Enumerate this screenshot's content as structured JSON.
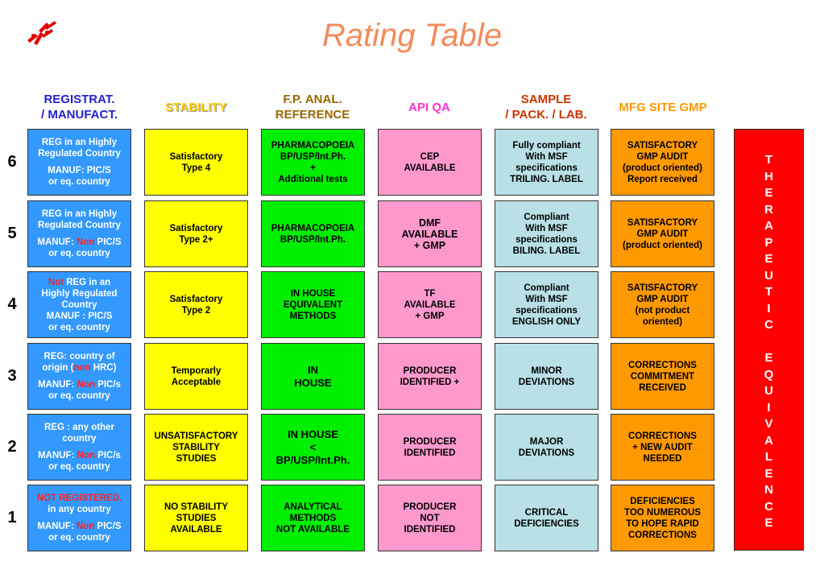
{
  "title": "Rating  Table",
  "logo_icon": "msf-logo-icon",
  "headers": [
    {
      "text": "REGISTRAT.\n/ MANUFACT.",
      "color": "#2222cc"
    },
    {
      "text": "STABILITY",
      "color": "#ffcc00"
    },
    {
      "text": "F.P. ANAL.\nREFERENCE",
      "color": "#996600"
    },
    {
      "text": "API QA",
      "color": "#ff33cc"
    },
    {
      "text": "SAMPLE\n/ PACK. / LAB.",
      "color": "#cc3300"
    },
    {
      "text": "MFG SITE GMP",
      "color": "#ff9900"
    }
  ],
  "rows": [
    {
      "num": "6",
      "cells": [
        [
          [
            {
              "t": "REG in an Highly"
            }
          ],
          [
            {
              "t": "Regulated  Country"
            }
          ],
          null,
          [
            {
              "t": "MANUF: PIC/S"
            }
          ],
          [
            {
              "t": "or eq. country"
            }
          ]
        ],
        [
          [
            {
              "t": "Satisfactory"
            }
          ],
          [
            {
              "t": "Type 4"
            }
          ]
        ],
        [
          [
            {
              "t": "PHARMACOPOEIA"
            }
          ],
          [
            {
              "t": "BP/USP/Int.Ph."
            }
          ],
          [
            {
              "t": "+"
            }
          ],
          [
            {
              "t": "Additional tests"
            }
          ]
        ],
        [
          [
            {
              "t": "CEP"
            }
          ],
          [
            {
              "t": "AVAILABLE"
            }
          ]
        ],
        [
          [
            {
              "t": "Fully compliant"
            }
          ],
          [
            {
              "t": "With MSF"
            }
          ],
          [
            {
              "t": "specifications"
            }
          ],
          [
            {
              "t": "TRILING. LABEL"
            }
          ]
        ],
        [
          [
            {
              "t": "SATISFACTORY"
            }
          ],
          [
            {
              "t": "GMP AUDIT"
            }
          ],
          [
            {
              "t": "(product oriented)"
            }
          ],
          [
            {
              "t": "Report received"
            }
          ]
        ]
      ]
    },
    {
      "num": "5",
      "cells": [
        [
          [
            {
              "t": "REG in an Highly"
            }
          ],
          [
            {
              "t": "Regulated Country"
            }
          ],
          null,
          [
            {
              "t": "MANUF: "
            },
            {
              "t": "Non",
              "red": true
            },
            {
              "t": " PIC/S"
            }
          ],
          [
            {
              "t": "or eq. country"
            }
          ]
        ],
        [
          [
            {
              "t": "Satisfactory"
            }
          ],
          [
            {
              "t": "Type 2+"
            }
          ]
        ],
        [
          [
            {
              "t": "PHARMACOPOEIA"
            }
          ],
          [
            {
              "t": "BP/USP/Int.Ph."
            }
          ]
        ],
        [
          [
            {
              "t": "DMF"
            }
          ],
          [
            {
              "t": "AVAILABLE"
            }
          ],
          [
            {
              "t": "+ GMP"
            }
          ]
        ],
        [
          [
            {
              "t": "Compliant"
            }
          ],
          [
            {
              "t": "With MSF"
            }
          ],
          [
            {
              "t": "specifications"
            }
          ],
          [
            {
              "t": "BILING. LABEL"
            }
          ]
        ],
        [
          [
            {
              "t": "SATISFACTORY"
            }
          ],
          [
            {
              "t": "GMP AUDIT"
            }
          ],
          [
            {
              "t": "(product oriented)"
            }
          ]
        ]
      ]
    },
    {
      "num": "4",
      "cells": [
        [
          [
            {
              "t": "Not",
              "red": true
            },
            {
              "t": " REG in an"
            }
          ],
          [
            {
              "t": "Highly  Regulated"
            }
          ],
          [
            {
              "t": "Country"
            }
          ],
          [
            {
              "t": "MANUF : PIC/S"
            }
          ],
          [
            {
              "t": "or eq. country"
            }
          ]
        ],
        [
          [
            {
              "t": "Satisfactory"
            }
          ],
          [
            {
              "t": "Type 2"
            }
          ]
        ],
        [
          [
            {
              "t": "IN HOUSE"
            }
          ],
          [
            {
              "t": "EQUIVALENT"
            }
          ],
          [
            {
              "t": "METHODS"
            }
          ]
        ],
        [
          [
            {
              "t": "TF"
            }
          ],
          [
            {
              "t": "AVAILABLE"
            }
          ],
          [
            {
              "t": "+ GMP"
            }
          ]
        ],
        [
          [
            {
              "t": "Compliant"
            }
          ],
          [
            {
              "t": "With MSF"
            }
          ],
          [
            {
              "t": "specifications"
            }
          ],
          [
            {
              "t": "ENGLISH ONLY"
            }
          ]
        ],
        [
          [
            {
              "t": "SATISFACTORY"
            }
          ],
          [
            {
              "t": "GMP AUDIT"
            }
          ],
          [
            {
              "t": "(not product"
            }
          ],
          [
            {
              "t": "oriented)"
            }
          ]
        ]
      ]
    },
    {
      "num": "3",
      "cells": [
        [
          [
            {
              "t": "REG: country of"
            }
          ],
          [
            {
              "t": "origin ("
            },
            {
              "t": "non",
              "red": true
            },
            {
              "t": " HRC)"
            }
          ],
          null,
          [
            {
              "t": "MANUF: "
            },
            {
              "t": "Non",
              "red": true
            },
            {
              "t": " PIC/s"
            }
          ],
          [
            {
              "t": "or eq. country"
            }
          ]
        ],
        [
          [
            {
              "t": "Temporarly"
            }
          ],
          [
            {
              "t": "Acceptable"
            }
          ]
        ],
        [
          [
            {
              "t": "IN"
            }
          ],
          [
            {
              "t": "HOUSE"
            }
          ]
        ],
        [
          [
            {
              "t": "PRODUCER"
            }
          ],
          [
            {
              "t": "IDENTIFIED +"
            }
          ]
        ],
        [
          [
            {
              "t": "MINOR"
            }
          ],
          [
            {
              "t": "DEVIATIONS"
            }
          ]
        ],
        [
          [
            {
              "t": "CORRECTIONS"
            }
          ],
          [
            {
              "t": "COMMITMENT"
            }
          ],
          [
            {
              "t": "RECEIVED"
            }
          ]
        ]
      ]
    },
    {
      "num": "2",
      "cells": [
        [
          [
            {
              "t": "REG :  any other"
            }
          ],
          [
            {
              "t": "country"
            }
          ],
          null,
          [
            {
              "t": "MANUF: "
            },
            {
              "t": "Non",
              "red": true
            },
            {
              "t": " PIC/s"
            }
          ],
          [
            {
              "t": "or eq. country"
            }
          ]
        ],
        [
          [
            {
              "t": "UNSATISFACTORY"
            }
          ],
          [
            {
              "t": "STABILITY"
            }
          ],
          [
            {
              "t": "STUDIES"
            }
          ]
        ],
        [
          [
            {
              "t": "IN  HOUSE"
            }
          ],
          [
            {
              "t": "<"
            }
          ],
          [
            {
              "t": "BP/USP/Int.Ph."
            }
          ]
        ],
        [
          [
            {
              "t": "PRODUCER"
            }
          ],
          [
            {
              "t": "IDENTIFIED"
            }
          ]
        ],
        [
          [
            {
              "t": "MAJOR"
            }
          ],
          [
            {
              "t": "DEVIATIONS"
            }
          ]
        ],
        [
          [
            {
              "t": "CORRECTIONS"
            }
          ],
          [
            {
              "t": "+ NEW AUDIT"
            }
          ],
          [
            {
              "t": "NEEDED"
            }
          ]
        ]
      ]
    },
    {
      "num": "1",
      "cells": [
        [
          [
            {
              "t": "NOT REGISTERED.",
              "red": true
            }
          ],
          [
            {
              "t": "in any country"
            }
          ],
          null,
          [
            {
              "t": "MANUF: "
            },
            {
              "t": "Non",
              "red": true
            },
            {
              "t": " PIC/S"
            }
          ],
          [
            {
              "t": "or eq. country"
            }
          ]
        ],
        [
          [
            {
              "t": "NO STABILITY"
            }
          ],
          [
            {
              "t": "STUDIES"
            }
          ],
          [
            {
              "t": "AVAILABLE"
            }
          ]
        ],
        [
          [
            {
              "t": "ANALYTICAL"
            }
          ],
          [
            {
              "t": "METHODS"
            }
          ],
          [
            {
              "t": "NOT AVAILABLE"
            }
          ]
        ],
        [
          [
            {
              "t": "PRODUCER"
            }
          ],
          [
            {
              "t": "NOT"
            }
          ],
          [
            {
              "t": "IDENTIFIED"
            }
          ]
        ],
        [
          [
            {
              "t": "CRITICAL"
            }
          ],
          [
            {
              "t": "DEFICIENCIES"
            }
          ]
        ],
        [
          [
            {
              "t": "DEFICIENCIES"
            }
          ],
          [
            {
              "t": "TOO NUMEROUS"
            }
          ],
          [
            {
              "t": "TO HOPE RAPID"
            }
          ],
          [
            {
              "t": "CORRECTIONS"
            }
          ]
        ]
      ]
    }
  ],
  "therapeutic_equivalence": [
    "T",
    "H",
    "E",
    "R",
    "A",
    "P",
    "E",
    "U",
    "T",
    "I",
    "C",
    "",
    "E",
    "Q",
    "U",
    "I",
    "V",
    "A",
    "L",
    "E",
    "N",
    "C",
    "E"
  ],
  "colors": {
    "registration": "#3399ff",
    "stability": "#ffff00",
    "fp_analysis": "#00ee00",
    "api_qa": "#ff99cc",
    "sample": "#b8e0e6",
    "mfg_gmp": "#ff9900",
    "therapeutic": "#ff0000",
    "title": "#f28c5a"
  }
}
